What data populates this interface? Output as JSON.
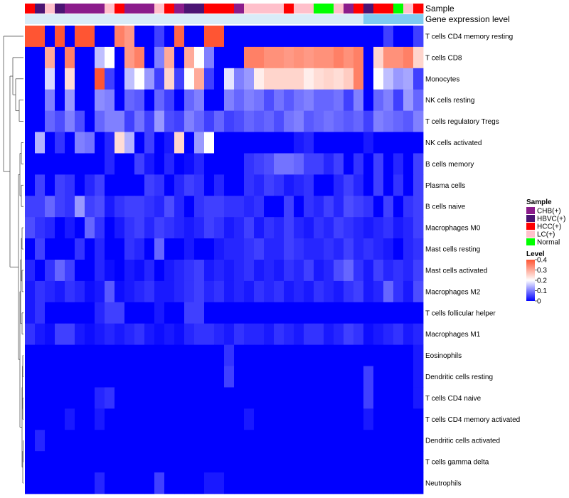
{
  "chart_data": {
    "type": "heatmap",
    "title": "",
    "annotation_labels": {
      "sample": "Sample",
      "gene": "Gene expression level"
    },
    "rows": [
      "T cells CD4 memory resting",
      "T cells CD8",
      "Monocytes",
      "NK cells resting",
      "T cells regulatory  Tregs",
      "NK cells activated",
      "B cells memory",
      "Plasma cells",
      "B cells naive",
      "Macrophages M0",
      "Mast cells resting",
      "Mast cells activated",
      "Macrophages M2",
      "T cells follicular helper",
      "Macrophages M1",
      "Eosinophils",
      "Dendritic cells resting",
      "T cells CD4 naive",
      "T cells CD4 memory activated",
      "Dendritic cells activated",
      "T cells gamma delta",
      "Neutrophils"
    ],
    "sample_groups": [
      "HCC(+)",
      "HBVC(+)",
      "LC(+)",
      "HBVC(+)",
      "CHB(+)",
      "CHB(+)",
      "CHB(+)",
      "CHB(+)",
      "LC(+)",
      "HCC(+)",
      "CHB(+)",
      "CHB(+)",
      "CHB(+)",
      "LC(+)",
      "HCC(+)",
      "CHB(+)",
      "HBVC(+)",
      "HBVC(+)",
      "HCC(+)",
      "HCC(+)",
      "HCC(+)",
      "CHB(+)",
      "LC(+)",
      "LC(+)",
      "LC(+)",
      "LC(+)",
      "HCC(+)",
      "LC(+)",
      "LC(+)",
      "Normal",
      "Normal",
      "LC(+)",
      "CHB(+)",
      "HCC(+)",
      "HBVC(+)",
      "HCC(+)",
      "HCC(+)",
      "Normal",
      "LC(+)",
      "HCC(+)"
    ],
    "gene_level": [
      "low",
      "low",
      "low",
      "low",
      "low",
      "low",
      "low",
      "low",
      "low",
      "low",
      "low",
      "low",
      "low",
      "low",
      "low",
      "low",
      "low",
      "low",
      "low",
      "low",
      "low",
      "low",
      "low",
      "low",
      "low",
      "low",
      "low",
      "low",
      "low",
      "low",
      "low",
      "low",
      "low",
      "low",
      "high",
      "high",
      "high",
      "high",
      "high",
      "high"
    ],
    "values": [
      [
        0.4,
        0.4,
        0,
        0.4,
        0,
        0.4,
        0.4,
        0,
        0,
        0.35,
        0.32,
        0,
        0,
        0.05,
        0,
        0.38,
        0,
        0,
        0.4,
        0.4,
        0,
        0,
        0,
        0,
        0,
        0,
        0,
        0,
        0,
        0,
        0,
        0,
        0,
        0,
        0,
        0,
        0.05,
        0,
        0,
        0.05
      ],
      [
        0,
        0,
        0.3,
        0,
        0.35,
        0,
        0,
        0.15,
        0.2,
        0,
        0.32,
        0.35,
        0,
        0.1,
        0.3,
        0,
        0.3,
        0.2,
        0.1,
        0,
        0,
        0,
        0.35,
        0.35,
        0.33,
        0.33,
        0.32,
        0.33,
        0.32,
        0.33,
        0.33,
        0.35,
        0.33,
        0.35,
        0,
        0.25,
        0.33,
        0.33,
        0.35,
        0.25
      ],
      [
        0,
        0,
        0.17,
        0,
        0.24,
        0,
        0,
        0.4,
        0.05,
        0,
        0.15,
        0.2,
        0.12,
        0.05,
        0.25,
        0.05,
        0.2,
        0.3,
        0.05,
        0,
        0.18,
        0.1,
        0.12,
        0.22,
        0.25,
        0.25,
        0.25,
        0.25,
        0.22,
        0.24,
        0.25,
        0.24,
        0.26,
        0.35,
        0,
        0.2,
        0.15,
        0.12,
        0.13,
        0.05
      ],
      [
        0,
        0,
        0.1,
        0,
        0.12,
        0,
        0,
        0.11,
        0.1,
        0,
        0.08,
        0.07,
        0,
        0.08,
        0.05,
        0,
        0.08,
        0.1,
        0,
        0,
        0.1,
        0.08,
        0.1,
        0.09,
        0.06,
        0.09,
        0.07,
        0.09,
        0.1,
        0.08,
        0.08,
        0.09,
        0.05,
        0.1,
        0,
        0.08,
        0.1,
        0.05,
        0.12,
        0.08
      ],
      [
        0,
        0,
        0.08,
        0.06,
        0.1,
        0.06,
        0,
        0.08,
        0.1,
        0.1,
        0.05,
        0.09,
        0.05,
        0.12,
        0.06,
        0.05,
        0.1,
        0.08,
        0.05,
        0.08,
        0.05,
        0.06,
        0.08,
        0.07,
        0.08,
        0.06,
        0.09,
        0.1,
        0.07,
        0.08,
        0.09,
        0.08,
        0.07,
        0.08,
        0.05,
        0.1,
        0.09,
        0.08,
        0.07,
        0.1
      ],
      [
        0,
        0.14,
        0,
        0.04,
        0,
        0.1,
        0.09,
        0,
        0.03,
        0.24,
        0.14,
        0,
        0.05,
        0,
        0.02,
        0.25,
        0,
        0.12,
        0.2,
        0,
        0,
        0,
        0,
        0,
        0,
        0,
        0,
        0.02,
        0.03,
        0,
        0,
        0,
        0,
        0,
        0.02,
        0,
        0,
        0,
        0,
        0
      ],
      [
        0,
        0,
        0,
        0,
        0,
        0,
        0,
        0,
        0.03,
        0,
        0,
        0.05,
        0.02,
        0,
        0.03,
        0,
        0.01,
        0.03,
        0,
        0,
        0,
        0,
        0.04,
        0.05,
        0.06,
        0.09,
        0.09,
        0.08,
        0.05,
        0.05,
        0.03,
        0.05,
        0,
        0.04,
        0,
        0.05,
        0,
        0.03,
        0,
        0.05
      ],
      [
        0,
        0.05,
        0,
        0.05,
        0.04,
        0,
        0.03,
        0.05,
        0,
        0,
        0,
        0,
        0.05,
        0.04,
        0,
        0.03,
        0.05,
        0.04,
        0,
        0.03,
        0,
        0,
        0.04,
        0.03,
        0.05,
        0.04,
        0.02,
        0.03,
        0.04,
        0,
        0,
        0.03,
        0.05,
        0.03,
        0,
        0.05,
        0,
        0.04,
        0,
        0.05
      ],
      [
        0.05,
        0.05,
        0.08,
        0.05,
        0.04,
        0.12,
        0.05,
        0.06,
        0.02,
        0.04,
        0.05,
        0.05,
        0.04,
        0.03,
        0.06,
        0.03,
        0,
        0.04,
        0.05,
        0.05,
        0.04,
        0.04,
        0.03,
        0.04,
        0,
        0,
        0.05,
        0,
        0.04,
        0.03,
        0.05,
        0.03,
        0.06,
        0.05,
        0.04,
        0,
        0.05,
        0,
        0.04,
        0.05
      ],
      [
        0.06,
        0.04,
        0.03,
        0,
        0.02,
        0,
        0.08,
        0.04,
        0,
        0.02,
        0.04,
        0.05,
        0.03,
        0.05,
        0.04,
        0.03,
        0.02,
        0.03,
        0.05,
        0.04,
        0.02,
        0.03,
        0.05,
        0.02,
        0.04,
        0.03,
        0.05,
        0.03,
        0.02,
        0.04,
        0.03,
        0.05,
        0.04,
        0.03,
        0.02,
        0.03,
        0.04,
        0.02,
        0.03,
        0.05
      ],
      [
        0,
        0.05,
        0,
        0,
        0,
        0.04,
        0,
        0.03,
        0,
        0,
        0.04,
        0.03,
        0,
        0.08,
        0,
        0,
        0.02,
        0,
        0,
        0.02,
        0.03,
        0.03,
        0.04,
        0.05,
        0.03,
        0.03,
        0.05,
        0.04,
        0.03,
        0.03,
        0.04,
        0.03,
        0.05,
        0.03,
        0.04,
        0.03,
        0.02,
        0,
        0.03,
        0.04
      ],
      [
        0.03,
        0,
        0.04,
        0.08,
        0.05,
        0,
        0,
        0.03,
        0.01,
        0,
        0.02,
        0.01,
        0.03,
        0,
        0.02,
        0.03,
        0.04,
        0.05,
        0.02,
        0.03,
        0.02,
        0.03,
        0.04,
        0.02,
        0.03,
        0.02,
        0.04,
        0.03,
        0.05,
        0.02,
        0.03,
        0.06,
        0.08,
        0.04,
        0.02,
        0.05,
        0.03,
        0.04,
        0.03,
        0.05
      ],
      [
        0.02,
        0.04,
        0.03,
        0.02,
        0.04,
        0.03,
        0.01,
        0.02,
        0.07,
        0.01,
        0.02,
        0.03,
        0.04,
        0.02,
        0.02,
        0.03,
        0.04,
        0.05,
        0.03,
        0.04,
        0.02,
        0.03,
        0.02,
        0.04,
        0.03,
        0.04,
        0.02,
        0.03,
        0.02,
        0.04,
        0.03,
        0.02,
        0.04,
        0.05,
        0.02,
        0.03,
        0.08,
        0.04,
        0.02,
        0.06
      ],
      [
        0.02,
        0.04,
        0,
        0,
        0,
        0,
        0,
        0.03,
        0.05,
        0.05,
        0,
        0,
        0,
        0.02,
        0,
        0,
        0.05,
        0.05,
        0,
        0,
        0,
        0,
        0,
        0,
        0,
        0,
        0,
        0,
        0,
        0,
        0,
        0,
        0,
        0,
        0,
        0,
        0,
        0,
        0,
        0
      ],
      [
        0.04,
        0.02,
        0.01,
        0.05,
        0.05,
        0.02,
        0.01,
        0.02,
        0.03,
        0.02,
        0.03,
        0.04,
        0.02,
        0.01,
        0.02,
        0.01,
        0.03,
        0.04,
        0.04,
        0.03,
        0.02,
        0.04,
        0.03,
        0.03,
        0.02,
        0.04,
        0.03,
        0.02,
        0.04,
        0.04,
        0.02,
        0.03,
        0.05,
        0.04,
        0.01,
        0.02,
        0.03,
        0.04,
        0.02,
        0.03
      ],
      [
        0,
        0,
        0,
        0,
        0,
        0,
        0,
        0,
        0,
        0,
        0,
        0,
        0,
        0,
        0,
        0,
        0,
        0,
        0,
        0,
        0.04,
        0,
        0,
        0,
        0,
        0,
        0,
        0,
        0,
        0,
        0,
        0,
        0,
        0,
        0,
        0,
        0,
        0,
        0,
        0.02
      ],
      [
        0,
        0,
        0,
        0,
        0,
        0,
        0,
        0,
        0,
        0,
        0,
        0,
        0,
        0,
        0,
        0,
        0,
        0,
        0,
        0,
        0.05,
        0,
        0,
        0,
        0,
        0,
        0,
        0,
        0,
        0,
        0,
        0,
        0,
        0,
        0.05,
        0,
        0,
        0,
        0,
        0.02
      ],
      [
        0,
        0,
        0,
        0,
        0,
        0,
        0,
        0.03,
        0.04,
        0,
        0,
        0,
        0,
        0,
        0,
        0,
        0,
        0,
        0,
        0,
        0,
        0,
        0,
        0,
        0,
        0,
        0,
        0,
        0,
        0,
        0,
        0,
        0,
        0,
        0.05,
        0,
        0,
        0,
        0,
        0.02
      ],
      [
        0,
        0,
        0,
        0,
        0.02,
        0,
        0,
        0.02,
        0,
        0,
        0,
        0,
        0,
        0,
        0,
        0,
        0,
        0,
        0,
        0,
        0,
        0,
        0.02,
        0,
        0,
        0,
        0,
        0,
        0,
        0,
        0,
        0,
        0,
        0,
        0.02,
        0,
        0,
        0,
        0,
        0
      ],
      [
        0,
        0.03,
        0,
        0,
        0,
        0,
        0,
        0,
        0,
        0,
        0,
        0,
        0,
        0,
        0,
        0,
        0,
        0,
        0,
        0,
        0,
        0,
        0,
        0,
        0,
        0,
        0,
        0,
        0,
        0,
        0,
        0,
        0,
        0,
        0,
        0,
        0,
        0,
        0,
        0
      ],
      [
        0,
        0,
        0,
        0,
        0,
        0,
        0,
        0,
        0,
        0,
        0,
        0,
        0,
        0,
        0,
        0,
        0,
        0,
        0,
        0,
        0,
        0,
        0,
        0,
        0,
        0,
        0,
        0,
        0,
        0,
        0,
        0,
        0,
        0,
        0,
        0,
        0,
        0,
        0,
        0
      ],
      [
        0,
        0,
        0,
        0,
        0,
        0,
        0,
        0.03,
        0,
        0,
        0,
        0,
        0,
        0.05,
        0,
        0,
        0,
        0,
        0.02,
        0.02,
        0,
        0,
        0,
        0,
        0,
        0,
        0,
        0,
        0,
        0,
        0,
        0,
        0,
        0,
        0,
        0,
        0,
        0,
        0,
        0
      ]
    ],
    "legend": {
      "sample_title": "Sample",
      "sample_entries": [
        {
          "label": "CHB(+)",
          "color": "#8B1C8B"
        },
        {
          "label": "HBVC(+)",
          "color": "#4B1473"
        },
        {
          "label": "HCC(+)",
          "color": "#FF0000"
        },
        {
          "label": "LC(+)",
          "color": "#FFC0CB"
        },
        {
          "label": "Normal",
          "color": "#00FF00"
        }
      ],
      "level_title": "Level",
      "level_ticks": [
        "0.4",
        "0.3",
        "0.2",
        "0.1",
        "0"
      ],
      "level_tick_values": [
        0.4,
        0.3,
        0.2,
        0.1,
        0
      ],
      "color_scale": {
        "min": 0,
        "mid": 0.2,
        "max": 0.4,
        "low": "#0000FF",
        "mid_color": "#FFFFFF",
        "high": "#FF5533"
      }
    },
    "gene_level_colors": {
      "low": "#D9ECF8",
      "high": "#7FCBF2"
    }
  }
}
